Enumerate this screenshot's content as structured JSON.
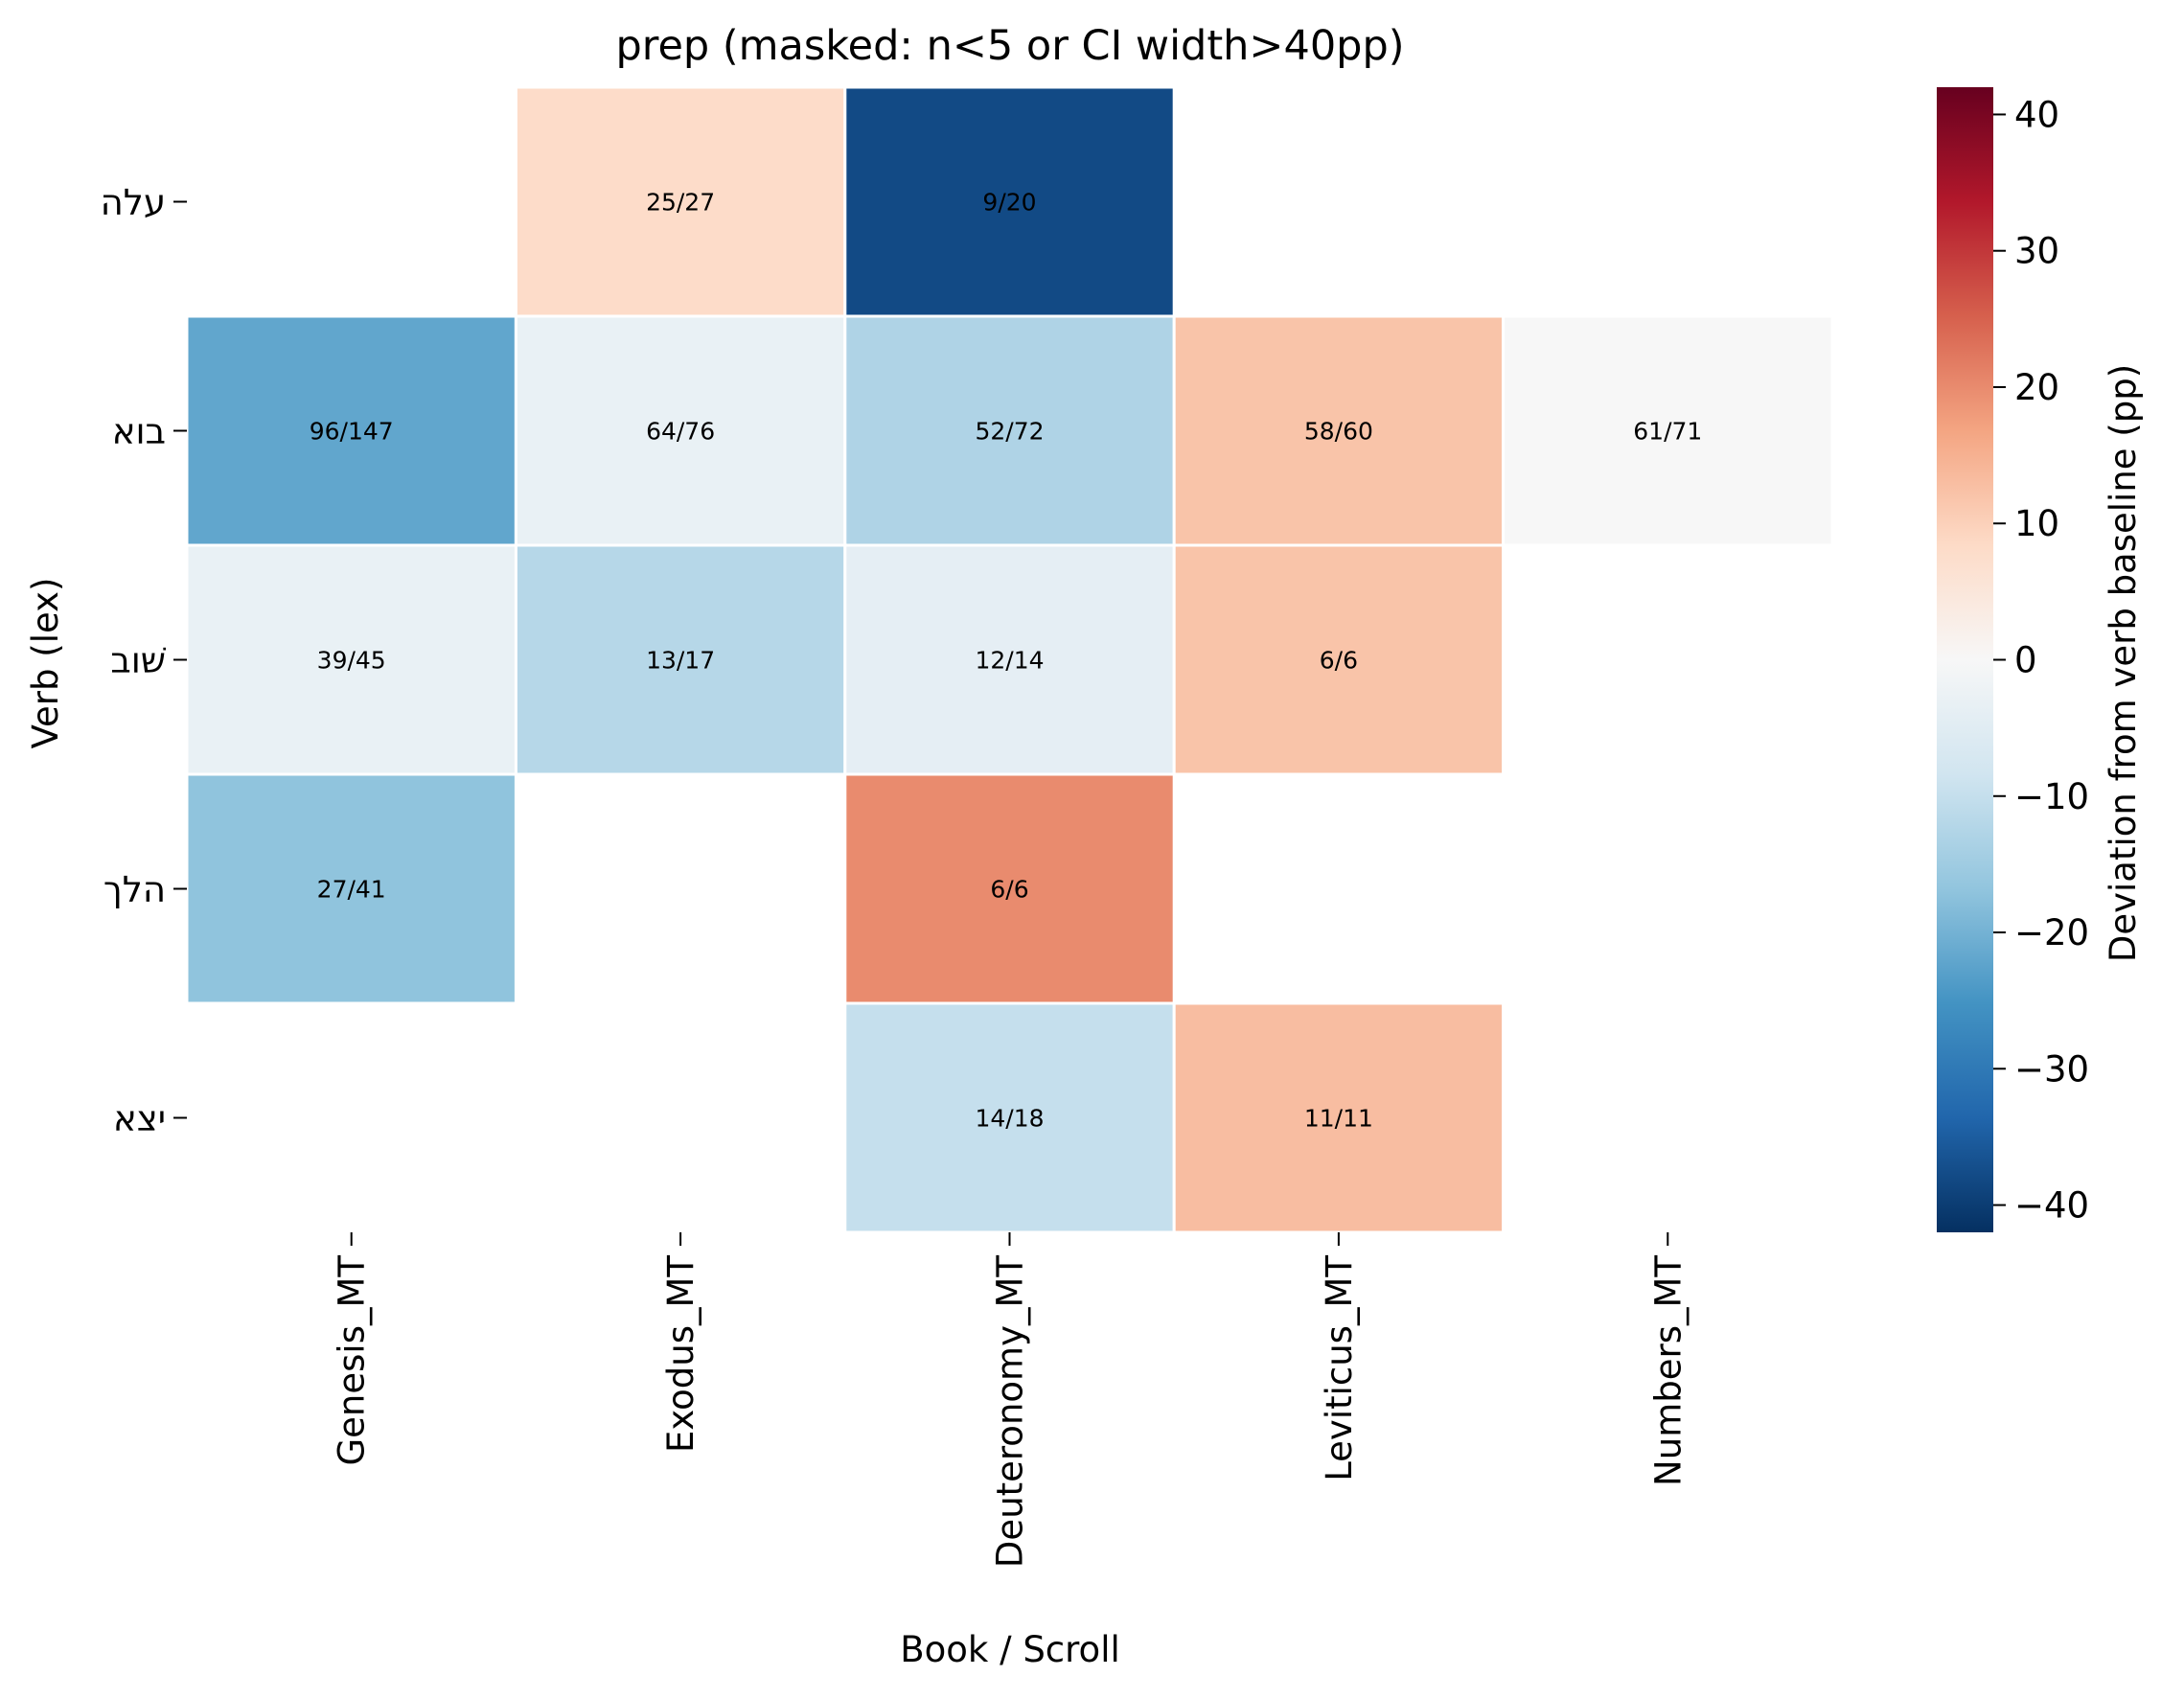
{
  "chart_data": {
    "type": "heatmap",
    "title": "prep (masked: n<5 or CI width>40pp)",
    "xlabel": "Book / Scroll",
    "ylabel": "Verb (lex)",
    "x_categories": [
      "Genesis_MT",
      "Exodus_MT",
      "Deuteronomy_MT",
      "Leviticus_MT",
      "Numbers_MT"
    ],
    "y_categories": [
      "עלה",
      "בוא",
      "שׁוב",
      "הלך",
      "יצא"
    ],
    "colorbar": {
      "label": "Deviation from verb baseline (pp)",
      "vmin": -42,
      "vmax": 42,
      "ticks": [
        40,
        30,
        20,
        10,
        0,
        -10,
        -20,
        -30,
        -40
      ],
      "tick_labels": [
        "40",
        "30",
        "20",
        "10",
        "0",
        "−10",
        "−20",
        "−30",
        "−40"
      ],
      "colormap": "RdBu_r"
    },
    "cells": [
      {
        "row": 0,
        "col": 1,
        "value": 8,
        "annotation": "25/27"
      },
      {
        "row": 0,
        "col": 2,
        "value": -38,
        "annotation": "9/20"
      },
      {
        "row": 1,
        "col": 0,
        "value": -22,
        "annotation": "96/147"
      },
      {
        "row": 1,
        "col": 1,
        "value": -3,
        "annotation": "64/76"
      },
      {
        "row": 1,
        "col": 2,
        "value": -13,
        "annotation": "52/72"
      },
      {
        "row": 1,
        "col": 3,
        "value": 12,
        "annotation": "58/60"
      },
      {
        "row": 1,
        "col": 4,
        "value": 0,
        "annotation": "61/71"
      },
      {
        "row": 2,
        "col": 0,
        "value": -3,
        "annotation": "39/45"
      },
      {
        "row": 2,
        "col": 1,
        "value": -12,
        "annotation": "13/17"
      },
      {
        "row": 2,
        "col": 2,
        "value": -4,
        "annotation": "12/14"
      },
      {
        "row": 2,
        "col": 3,
        "value": 12,
        "annotation": "6/6"
      },
      {
        "row": 3,
        "col": 0,
        "value": -17,
        "annotation": "27/41"
      },
      {
        "row": 3,
        "col": 2,
        "value": 20,
        "annotation": "6/6"
      },
      {
        "row": 4,
        "col": 2,
        "value": -10,
        "annotation": "14/18"
      },
      {
        "row": 4,
        "col": 3,
        "value": 13,
        "annotation": "11/11"
      }
    ]
  }
}
